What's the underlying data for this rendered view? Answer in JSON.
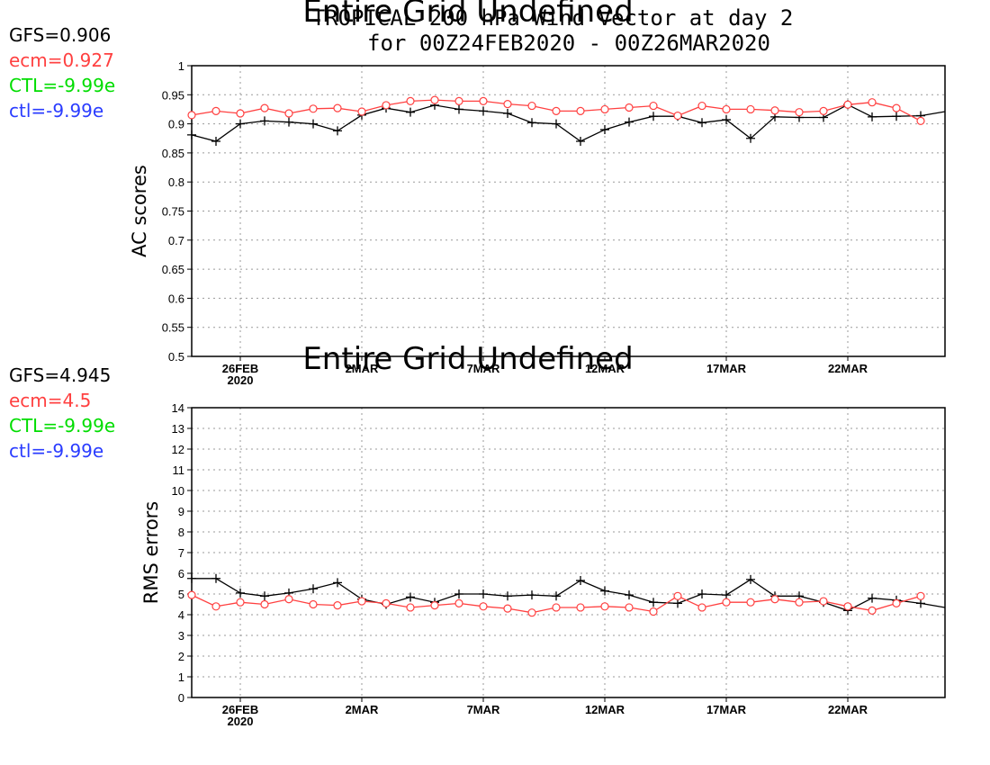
{
  "title": {
    "line1": "TROPICAL 200 hPa Wind Vector at day 2",
    "line2": "for 00Z24FEB2020 - 00Z26MAR2020",
    "overlay": "Entire Grid Undefined"
  },
  "colors": {
    "GFS": "#000000",
    "ecm": "#ff4040",
    "CTL": "#00dd00",
    "ctl": "#2a3cff"
  },
  "chart_data": [
    {
      "type": "line",
      "ylabel": "AC scores",
      "ylim": [
        0.5,
        1.0
      ],
      "yticks": [
        "0.5",
        "0.55",
        "0.6",
        "0.65",
        "0.7",
        "0.75",
        "0.8",
        "0.85",
        "0.9",
        "0.95",
        "1"
      ],
      "xlim": [
        "24FEB2020",
        "26MAR2020"
      ],
      "xticks": [
        {
          "day": 2,
          "label": "26FEB",
          "sub": "2020"
        },
        {
          "day": 7,
          "label": "2MAR",
          "sub": ""
        },
        {
          "day": 12,
          "label": "7MAR",
          "sub": ""
        },
        {
          "day": 17,
          "label": "12MAR",
          "sub": ""
        },
        {
          "day": 22,
          "label": "17MAR",
          "sub": ""
        },
        {
          "day": 27,
          "label": "22MAR",
          "sub": ""
        }
      ],
      "overlay_text": "Entire Grid Undefined",
      "legend": [
        {
          "name": "GFS",
          "value": "0.906"
        },
        {
          "name": "ecm",
          "value": "0.927"
        },
        {
          "name": "CTL",
          "value": "-9.99e"
        },
        {
          "name": "ctl",
          "value": "-9.99e"
        }
      ],
      "series": [
        {
          "name": "GFS",
          "marker": "plus",
          "x": [
            0,
            1,
            2,
            3,
            4,
            5,
            6,
            7,
            8,
            9,
            10,
            11,
            12,
            13,
            14,
            15,
            16,
            17,
            18,
            19,
            20,
            21,
            22,
            23,
            24,
            25,
            26,
            27,
            28,
            29,
            30,
            31
          ],
          "values": [
            0.881,
            0.87,
            0.9,
            0.905,
            0.903,
            0.9,
            0.888,
            0.915,
            0.927,
            0.92,
            0.932,
            0.925,
            0.922,
            0.918,
            0.902,
            0.9,
            0.87,
            0.89,
            0.903,
            0.913,
            0.913,
            0.902,
            0.907,
            0.875,
            0.912,
            0.911,
            0.911,
            0.933,
            0.912,
            0.913,
            0.914,
            0.921
          ]
        },
        {
          "name": "ecm",
          "marker": "circle",
          "x": [
            0,
            1,
            2,
            3,
            4,
            5,
            6,
            7,
            8,
            9,
            10,
            11,
            12,
            13,
            14,
            15,
            16,
            17,
            18,
            19,
            20,
            21,
            22,
            23,
            24,
            25,
            26,
            27,
            28,
            29,
            30
          ],
          "values": [
            0.915,
            0.922,
            0.918,
            0.927,
            0.918,
            0.926,
            0.927,
            0.921,
            0.932,
            0.939,
            0.941,
            0.939,
            0.939,
            0.934,
            0.931,
            0.922,
            0.922,
            0.925,
            0.928,
            0.931,
            0.914,
            0.931,
            0.925,
            0.925,
            0.923,
            0.92,
            0.922,
            0.933,
            0.937,
            0.927,
            0.905
          ]
        }
      ]
    },
    {
      "type": "line",
      "ylabel": "RMS errors",
      "ylim": [
        0,
        14
      ],
      "yticks": [
        "0",
        "1",
        "2",
        "3",
        "4",
        "5",
        "6",
        "7",
        "8",
        "9",
        "10",
        "11",
        "12",
        "13",
        "14"
      ],
      "xlim": [
        "24FEB2020",
        "26MAR2020"
      ],
      "xticks": [
        {
          "day": 2,
          "label": "26FEB",
          "sub": "2020"
        },
        {
          "day": 7,
          "label": "2MAR",
          "sub": ""
        },
        {
          "day": 12,
          "label": "7MAR",
          "sub": ""
        },
        {
          "day": 17,
          "label": "12MAR",
          "sub": ""
        },
        {
          "day": 22,
          "label": "17MAR",
          "sub": ""
        },
        {
          "day": 27,
          "label": "22MAR",
          "sub": ""
        }
      ],
      "legend": [
        {
          "name": "GFS",
          "value": "4.945"
        },
        {
          "name": "ecm",
          "value": "4.5"
        },
        {
          "name": "CTL",
          "value": "-9.99e"
        },
        {
          "name": "ctl",
          "value": "-9.99e"
        }
      ],
      "series": [
        {
          "name": "GFS",
          "marker": "plus",
          "x": [
            0,
            1,
            2,
            3,
            4,
            5,
            6,
            7,
            8,
            9,
            10,
            11,
            12,
            13,
            14,
            15,
            16,
            17,
            18,
            19,
            20,
            21,
            22,
            23,
            24,
            25,
            26,
            27,
            28,
            29,
            30,
            31
          ],
          "values": [
            5.75,
            5.75,
            5.05,
            4.9,
            5.05,
            5.25,
            5.55,
            4.75,
            4.5,
            4.85,
            4.6,
            5.0,
            5.0,
            4.9,
            4.95,
            4.9,
            5.65,
            5.15,
            4.95,
            4.6,
            4.55,
            5.0,
            4.95,
            5.7,
            4.9,
            4.9,
            4.6,
            4.2,
            4.8,
            4.7,
            4.55,
            4.35
          ]
        },
        {
          "name": "ecm",
          "marker": "circle",
          "x": [
            0,
            1,
            2,
            3,
            4,
            5,
            6,
            7,
            8,
            9,
            10,
            11,
            12,
            13,
            14,
            15,
            16,
            17,
            18,
            19,
            20,
            21,
            22,
            23,
            24,
            25,
            26,
            27,
            28,
            29,
            30
          ],
          "values": [
            4.95,
            4.4,
            4.6,
            4.5,
            4.75,
            4.5,
            4.45,
            4.65,
            4.55,
            4.35,
            4.45,
            4.55,
            4.4,
            4.3,
            4.1,
            4.35,
            4.35,
            4.4,
            4.35,
            4.15,
            4.9,
            4.35,
            4.6,
            4.6,
            4.75,
            4.6,
            4.65,
            4.4,
            4.2,
            4.55,
            4.9
          ]
        }
      ]
    }
  ]
}
